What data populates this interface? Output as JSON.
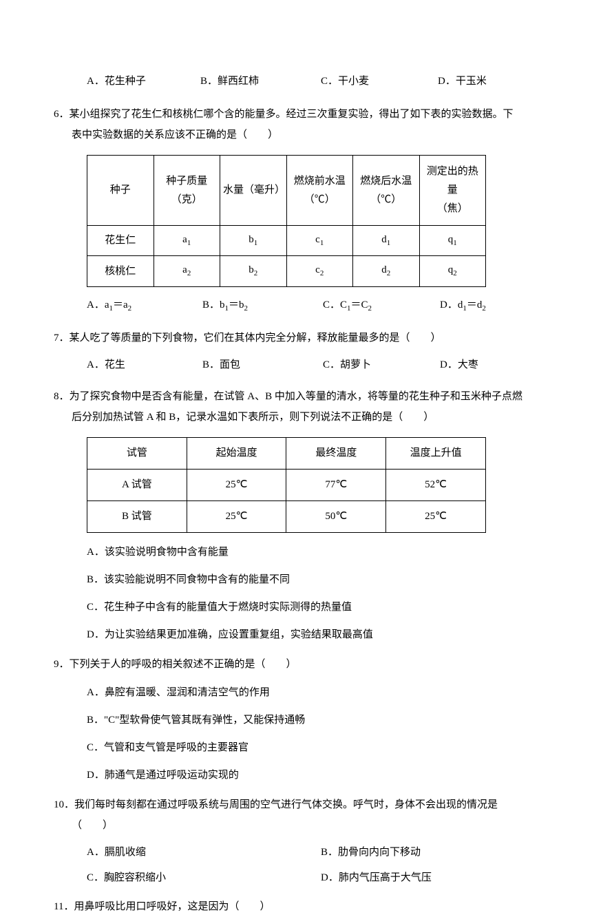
{
  "q5_options": {
    "a": "A．花生种子",
    "b": "B．鲜西红柿",
    "c": "C．干小麦",
    "d": "D．干玉米"
  },
  "q6": {
    "text": "6．某小组探究了花生仁和核桃仁哪个含的能量多。经过三次重复实验，得出了如下表的实验数据。下表中实验数据的关系应该不正确的是（　　）",
    "headers": [
      "种子",
      "种子质量（克）",
      "水量（毫升）",
      "燃烧前水温（℃）",
      "燃烧后水温（℃）",
      "测定出的热量（焦）"
    ],
    "row1": [
      "花生仁",
      "a",
      "b",
      "c",
      "d",
      "q"
    ],
    "row2": [
      "核桃仁",
      "a",
      "b",
      "c",
      "d",
      "q"
    ],
    "options": {
      "a": "A．a₁＝a₂",
      "b": "B．b₁＝b₂",
      "c": "C．C₁＝C₂",
      "d": "D．d₁＝d₂"
    }
  },
  "q7": {
    "text": "7．某人吃了等质量的下列食物，它们在其体内完全分解，释放能量最多的是（　　）",
    "options": {
      "a": "A．花生",
      "b": "B．面包",
      "c": "C．胡萝卜",
      "d": "D．大枣"
    }
  },
  "q8": {
    "text": "8．为了探究食物中是否含有能量，在试管 A、B 中加入等量的清水，将等量的花生种子和玉米种子点燃后分别加热试管 A 和 B，记录水温如下表所示，则下列说法不正确的是（　　）",
    "headers": [
      "试管",
      "起始温度",
      "最终温度",
      "温度上升值"
    ],
    "row1": [
      "A 试管",
      "25℃",
      "77℃",
      "52℃"
    ],
    "row2": [
      "B 试管",
      "25℃",
      "50℃",
      "25℃"
    ],
    "options": {
      "a": "A．该实验说明食物中含有能量",
      "b": "B．该实验能说明不同食物中含有的能量不同",
      "c": "C．花生种子中含有的能量值大于燃烧时实际测得的热量值",
      "d": "D．为让实验结果更加准确，应设置重复组，实验结果取最高值"
    }
  },
  "q9": {
    "text": "9．下列关于人的呼吸的相关叙述不正确的是（　　）",
    "options": {
      "a": "A．鼻腔有温暖、湿润和清洁空气的作用",
      "b": "B．\"C\"型软骨使气管其既有弹性，又能保持通畅",
      "c": "C．气管和支气管是呼吸的主要器官",
      "d": "D．肺通气是通过呼吸运动实现的"
    }
  },
  "q10": {
    "text": "10．我们每时每刻都在通过呼吸系统与周围的空气进行气体交换。呼气时，身体不会出现的情况是（　　）",
    "options": {
      "a": "A．膈肌收缩",
      "b": "B．肋骨向内向下移动",
      "c": "C．胸腔容积缩小",
      "d": "D．肺内气压高于大气压"
    }
  },
  "q11": {
    "text": "11．用鼻呼吸比用口呼吸好，这是因为（　　）"
  }
}
